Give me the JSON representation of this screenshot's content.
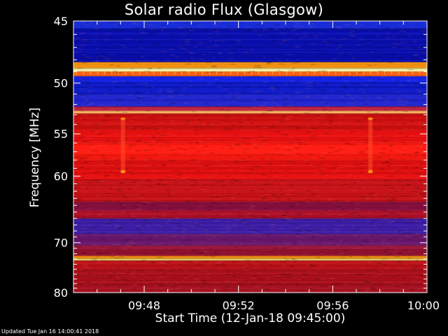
{
  "chart_data": {
    "type": "heatmap",
    "title": "Solar radio Flux (Glasgow)",
    "xlabel": "Start Time (12-Jan-18 09:45:00)",
    "ylabel": "Frequency [MHz]",
    "x_range": [
      "09:45",
      "10:00"
    ],
    "xlim_minutes": [
      0,
      15
    ],
    "ylim": [
      45,
      80
    ],
    "y_scale": "reciprocal",
    "x_ticks": [
      {
        "label": "09:48",
        "minute": 3
      },
      {
        "label": "09:52",
        "minute": 7
      },
      {
        "label": "09:56",
        "minute": 11
      },
      {
        "label": "10:00",
        "minute": 15
      }
    ],
    "y_ticks": [
      {
        "label": "45",
        "value": 45
      },
      {
        "label": "50",
        "value": 50
      },
      {
        "label": "55",
        "value": 55
      },
      {
        "label": "60",
        "value": 60
      },
      {
        "label": "70",
        "value": 70
      },
      {
        "label": "80",
        "value": 80
      }
    ],
    "frequency_bands_mhz": [
      {
        "from": 44.6,
        "to": 45.6,
        "color": "#1428d8"
      },
      {
        "from": 45.6,
        "to": 48.2,
        "color": "#0a0fb4"
      },
      {
        "from": 48.2,
        "to": 48.7,
        "color": "#ff9a10"
      },
      {
        "from": 48.7,
        "to": 49.0,
        "color": "#fff5a0"
      },
      {
        "from": 49.0,
        "to": 49.4,
        "color": "#ff6010"
      },
      {
        "from": 49.4,
        "to": 50.0,
        "color": "#1020e6"
      },
      {
        "from": 50.0,
        "to": 51.0,
        "color": "#0c18c8"
      },
      {
        "from": 51.0,
        "to": 52.2,
        "color": "#1f24cf"
      },
      {
        "from": 52.2,
        "to": 52.6,
        "color": "#c02040"
      },
      {
        "from": 52.6,
        "to": 52.9,
        "color": "#ffb060"
      },
      {
        "from": 52.9,
        "to": 54.5,
        "color": "#d41010"
      },
      {
        "from": 54.5,
        "to": 56.0,
        "color": "#f01212"
      },
      {
        "from": 56.0,
        "to": 58.0,
        "color": "#ff1a10"
      },
      {
        "from": 58.0,
        "to": 60.5,
        "color": "#e81010"
      },
      {
        "from": 60.5,
        "to": 63.5,
        "color": "#c81016"
      },
      {
        "from": 63.5,
        "to": 64.8,
        "color": "#8a1040"
      },
      {
        "from": 64.8,
        "to": 66.0,
        "color": "#b01028"
      },
      {
        "from": 66.0,
        "to": 68.5,
        "color": "#3c1ca8"
      },
      {
        "from": 68.5,
        "to": 70.5,
        "color": "#6a1870"
      },
      {
        "from": 70.5,
        "to": 72.4,
        "color": "#9a1236"
      },
      {
        "from": 72.4,
        "to": 72.9,
        "color": "#ff9a10"
      },
      {
        "from": 72.9,
        "to": 73.3,
        "color": "#ffe070"
      },
      {
        "from": 73.3,
        "to": 75.0,
        "color": "#c01018"
      },
      {
        "from": 75.0,
        "to": 78.0,
        "color": "#b0101c"
      },
      {
        "from": 78.0,
        "to": 81.0,
        "color": "#a81020"
      }
    ],
    "bursts": [
      {
        "minute": 2.1,
        "from_mhz": 53.3,
        "to_mhz": 59.5
      },
      {
        "minute": 12.6,
        "from_mhz": 53.3,
        "to_mhz": 59.5
      }
    ],
    "colors": {
      "background": "#000000",
      "axis": "#ffffff"
    }
  },
  "footer": {
    "updated": "Updated Tue Jan 16 14:00:41 2018"
  }
}
